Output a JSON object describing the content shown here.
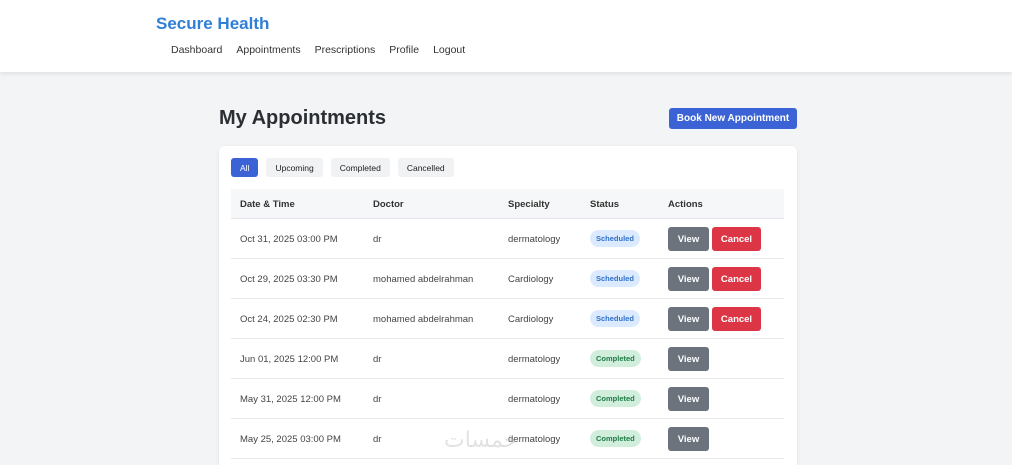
{
  "header": {
    "brand": "Secure Health",
    "nav": [
      "Dashboard",
      "Appointments",
      "Prescriptions",
      "Profile",
      "Logout"
    ]
  },
  "main": {
    "title": "My Appointments",
    "book_label": "Book New Appointment",
    "filters": [
      "All",
      "Upcoming",
      "Completed",
      "Cancelled"
    ],
    "active_filter": "All",
    "columns": [
      "Date & Time",
      "Doctor",
      "Specialty",
      "Status",
      "Actions"
    ],
    "rows": [
      {
        "datetime": "Oct 31, 2025 03:00 PM",
        "doctor": "dr",
        "specialty": "dermatology",
        "status": "Scheduled",
        "view_label": "View",
        "cancel_label": "Cancel"
      },
      {
        "datetime": "Oct 29, 2025 03:30 PM",
        "doctor": "mohamed abdelrahman",
        "specialty": "Cardiology",
        "status": "Scheduled",
        "view_label": "View",
        "cancel_label": "Cancel"
      },
      {
        "datetime": "Oct 24, 2025 02:30 PM",
        "doctor": "mohamed abdelrahman",
        "specialty": "Cardiology",
        "status": "Scheduled",
        "view_label": "View",
        "cancel_label": "Cancel"
      },
      {
        "datetime": "Jun 01, 2025 12:00 PM",
        "doctor": "dr",
        "specialty": "dermatology",
        "status": "Completed",
        "view_label": "View"
      },
      {
        "datetime": "May 31, 2025 12:00 PM",
        "doctor": "dr",
        "specialty": "dermatology",
        "status": "Completed",
        "view_label": "View"
      },
      {
        "datetime": "May 25, 2025 03:00 PM",
        "doctor": "dr",
        "specialty": "dermatology",
        "status": "Completed",
        "view_label": "View"
      }
    ]
  },
  "watermark": "خمسات",
  "colors": {
    "brand": "#2f7fd8",
    "primary": "#3b63d6",
    "danger": "#dc3545",
    "view": "#6c737c",
    "scheduled_bg": "#dbeafe",
    "completed_bg": "#d1eedd"
  }
}
